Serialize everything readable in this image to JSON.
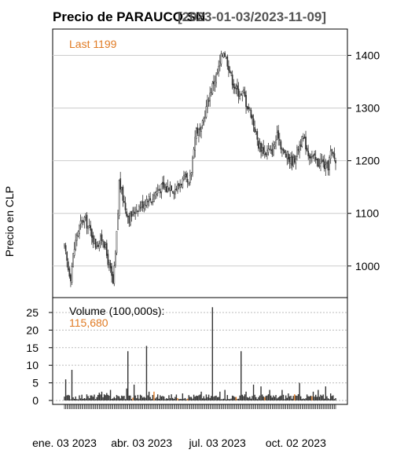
{
  "chart_data": {
    "type": "candlestick",
    "title": "Precio de PARAUCO.SN",
    "date_range": "[2023-01-03/2023-11-09]",
    "ylabel": "Precio en CLP",
    "last_label": "Last 1199",
    "price_ylim": [
      940,
      1450
    ],
    "price_ticks": [
      1000,
      1100,
      1200,
      1300,
      1400
    ],
    "volume": {
      "label": "Volume (100,000s):",
      "last_value": "115,680",
      "ylim": [
        0,
        27
      ],
      "ticks": [
        0,
        5,
        10,
        15,
        20,
        25
      ]
    },
    "x_tick_labels": [
      "ene. 03 2023",
      "abr. 03 2023",
      "jul. 03 2023",
      "oct. 02 2023"
    ],
    "x_tick_index": [
      0,
      62,
      123,
      186
    ],
    "price_waypoints": [
      [
        0,
        1035
      ],
      [
        3,
        995
      ],
      [
        5,
        980
      ],
      [
        7,
        1020
      ],
      [
        10,
        1060
      ],
      [
        13,
        1080
      ],
      [
        16,
        1090
      ],
      [
        19,
        1075
      ],
      [
        22,
        1060
      ],
      [
        25,
        1040
      ],
      [
        28,
        1045
      ],
      [
        31,
        1055
      ],
      [
        34,
        1020
      ],
      [
        37,
        990
      ],
      [
        39,
        965
      ],
      [
        41,
        1020
      ],
      [
        43,
        1100
      ],
      [
        44,
        1160
      ],
      [
        46,
        1140
      ],
      [
        49,
        1110
      ],
      [
        52,
        1090
      ],
      [
        55,
        1100
      ],
      [
        58,
        1110
      ],
      [
        61,
        1115
      ],
      [
        64,
        1120
      ],
      [
        67,
        1130
      ],
      [
        70,
        1125
      ],
      [
        73,
        1140
      ],
      [
        76,
        1145
      ],
      [
        79,
        1150
      ],
      [
        82,
        1145
      ],
      [
        85,
        1155
      ],
      [
        88,
        1145
      ],
      [
        91,
        1150
      ],
      [
        94,
        1160
      ],
      [
        97,
        1165
      ],
      [
        100,
        1150
      ],
      [
        102,
        1180
      ],
      [
        104,
        1230
      ],
      [
        106,
        1260
      ],
      [
        108,
        1255
      ],
      [
        110,
        1255
      ],
      [
        112,
        1280
      ],
      [
        114,
        1300
      ],
      [
        116,
        1320
      ],
      [
        118,
        1335
      ],
      [
        120,
        1350
      ],
      [
        122,
        1360
      ],
      [
        124,
        1375
      ],
      [
        126,
        1395
      ],
      [
        128,
        1410
      ],
      [
        130,
        1395
      ],
      [
        132,
        1380
      ],
      [
        134,
        1360
      ],
      [
        136,
        1345
      ],
      [
        138,
        1335
      ],
      [
        140,
        1330
      ],
      [
        142,
        1325
      ],
      [
        144,
        1330
      ],
      [
        146,
        1310
      ],
      [
        148,
        1300
      ],
      [
        150,
        1290
      ],
      [
        152,
        1270
      ],
      [
        154,
        1250
      ],
      [
        156,
        1230
      ],
      [
        158,
        1225
      ],
      [
        160,
        1220
      ],
      [
        162,
        1215
      ],
      [
        164,
        1220
      ],
      [
        166,
        1215
      ],
      [
        168,
        1225
      ],
      [
        170,
        1240
      ],
      [
        172,
        1250
      ],
      [
        174,
        1230
      ],
      [
        176,
        1215
      ],
      [
        178,
        1210
      ],
      [
        180,
        1205
      ],
      [
        182,
        1200
      ],
      [
        184,
        1200
      ],
      [
        186,
        1210
      ],
      [
        188,
        1225
      ],
      [
        190,
        1235
      ],
      [
        192,
        1240
      ],
      [
        194,
        1230
      ],
      [
        196,
        1215
      ],
      [
        198,
        1210
      ],
      [
        200,
        1205
      ],
      [
        202,
        1200
      ],
      [
        204,
        1195
      ],
      [
        206,
        1200
      ],
      [
        208,
        1195
      ],
      [
        210,
        1185
      ],
      [
        212,
        1190
      ],
      [
        214,
        1215
      ],
      [
        216,
        1210
      ],
      [
        218,
        1199
      ]
    ],
    "volume_spikes": [
      [
        1,
        6
      ],
      [
        6,
        8.7
      ],
      [
        28,
        2.2
      ],
      [
        30,
        2.5
      ],
      [
        34,
        2.1
      ],
      [
        37,
        3
      ],
      [
        50,
        3.4
      ],
      [
        51,
        14
      ],
      [
        56,
        4.5
      ],
      [
        66,
        15.5
      ],
      [
        68,
        2.5
      ],
      [
        72,
        2.5
      ],
      [
        95,
        2
      ],
      [
        110,
        2.5
      ],
      [
        119,
        26.5
      ],
      [
        125,
        2.5
      ],
      [
        129,
        3
      ],
      [
        142,
        14
      ],
      [
        146,
        2.5
      ],
      [
        152,
        4.5
      ],
      [
        158,
        4
      ],
      [
        165,
        3
      ],
      [
        175,
        3
      ],
      [
        180,
        2
      ],
      [
        189,
        5
      ],
      [
        200,
        2.5
      ],
      [
        204,
        3
      ],
      [
        210,
        4
      ],
      [
        214,
        2
      ]
    ],
    "volume_orange_bars": [
      55,
      72,
      91,
      99,
      138,
      161,
      185,
      199
    ],
    "n_sessions": 219,
    "grid": true
  }
}
